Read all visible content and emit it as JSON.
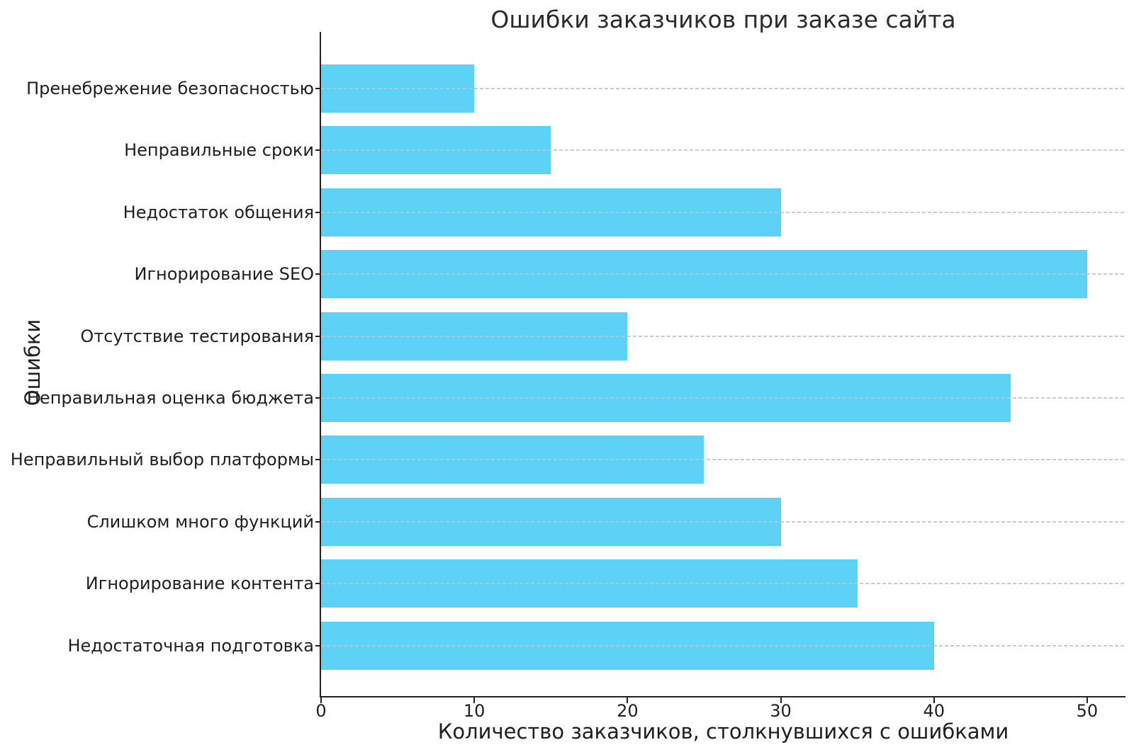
{
  "chart_data": {
    "type": "bar",
    "orientation": "horizontal",
    "title": "Ошибки заказчиков при заказе сайта",
    "xlabel": "Количество заказчиков, столкнувшихся с ошибками",
    "ylabel": "Ошибки",
    "categories": [
      "Пренебрежение безопасностью",
      "Неправильные сроки",
      "Недостаток общения",
      "Игнорирование SEO",
      "Отсутствие тестирования",
      "Неправильная оценка бюджета",
      "Неправильный выбор платформы",
      "Слишком много функций",
      "Игнорирование контента",
      "Недостаточная подготовка"
    ],
    "values": [
      10,
      15,
      30,
      50,
      20,
      45,
      25,
      30,
      35,
      40
    ],
    "xticks": [
      0,
      10,
      20,
      30,
      40,
      50
    ],
    "xlim": [
      0,
      52.5
    ],
    "grid": "horizontal-dashed",
    "grid_on": true,
    "legend": "none",
    "bar_color": "#5dd2f6",
    "grid_color": "#c4c4c4",
    "axis_color": "#222222"
  }
}
